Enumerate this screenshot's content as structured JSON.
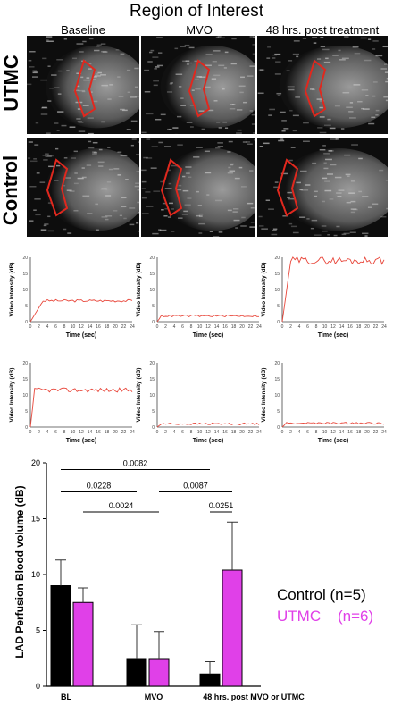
{
  "figure_title": "Region of Interest",
  "columns": [
    "Baseline",
    "MVO",
    "48 hrs. post treatment"
  ],
  "rows": [
    "UTMC",
    "Control"
  ],
  "mini_axis": {
    "ylabel": "Video Intensity (dB)",
    "xlabel": "Time (sec)",
    "xticks": [
      "0",
      "2",
      "4",
      "6",
      "8",
      "10",
      "12",
      "14",
      "16",
      "18",
      "20",
      "22",
      "24"
    ],
    "yticks": [
      "0",
      "5",
      "10",
      "15",
      "20"
    ]
  },
  "mini_plots": [
    {
      "row": "UTMC",
      "col": "Baseline",
      "level": 6.5,
      "rise": 3
    },
    {
      "row": "UTMC",
      "col": "MVO",
      "level": 1.8,
      "rise": 1
    },
    {
      "row": "UTMC",
      "col": "48 hrs. post treatment",
      "level": 19,
      "rise": 2
    },
    {
      "row": "Control",
      "col": "Baseline",
      "level": 11.5,
      "rise": 1
    },
    {
      "row": "Control",
      "col": "MVO",
      "level": 1.0,
      "rise": 1
    },
    {
      "row": "Control",
      "col": "48 hrs. post treatment",
      "level": 1.2,
      "rise": 1
    }
  ],
  "chart_data": {
    "type": "bar",
    "ylabel": "LAD Perfusion Blood volume (dB)",
    "ylim": [
      0,
      20
    ],
    "yticks": [
      "0",
      "5",
      "10",
      "15",
      "20"
    ],
    "categories": [
      "BL",
      "MVO",
      "48 hrs. post MVO or UTMC"
    ],
    "series": [
      {
        "name": "Control (n=5)",
        "color": "#000000",
        "values": [
          9.0,
          2.4,
          1.1
        ],
        "errors": [
          2.3,
          3.1,
          1.1
        ]
      },
      {
        "name": "UTMC    (n=6)",
        "color": "#e040e8",
        "values": [
          7.5,
          2.4,
          10.4
        ],
        "errors": [
          1.3,
          2.5,
          4.3
        ]
      }
    ],
    "comparisons": [
      {
        "label": "0.0082",
        "from": "BL Control",
        "to": "48h Control"
      },
      {
        "label": "0.0228",
        "from": "BL Control",
        "to": "MVO Control"
      },
      {
        "label": "0.0087",
        "from": "MVO UTMC",
        "to": "48h UTMC"
      },
      {
        "label": "0.0024",
        "from": "BL UTMC",
        "to": "MVO UTMC"
      },
      {
        "label": "0.0251",
        "from": "48h Control",
        "to": "48h UTMC"
      }
    ],
    "legend_position": "right"
  },
  "colors": {
    "trace": "#e8463a",
    "roi": "#e0281e",
    "control": "#000000",
    "utmc": "#e040e8"
  }
}
